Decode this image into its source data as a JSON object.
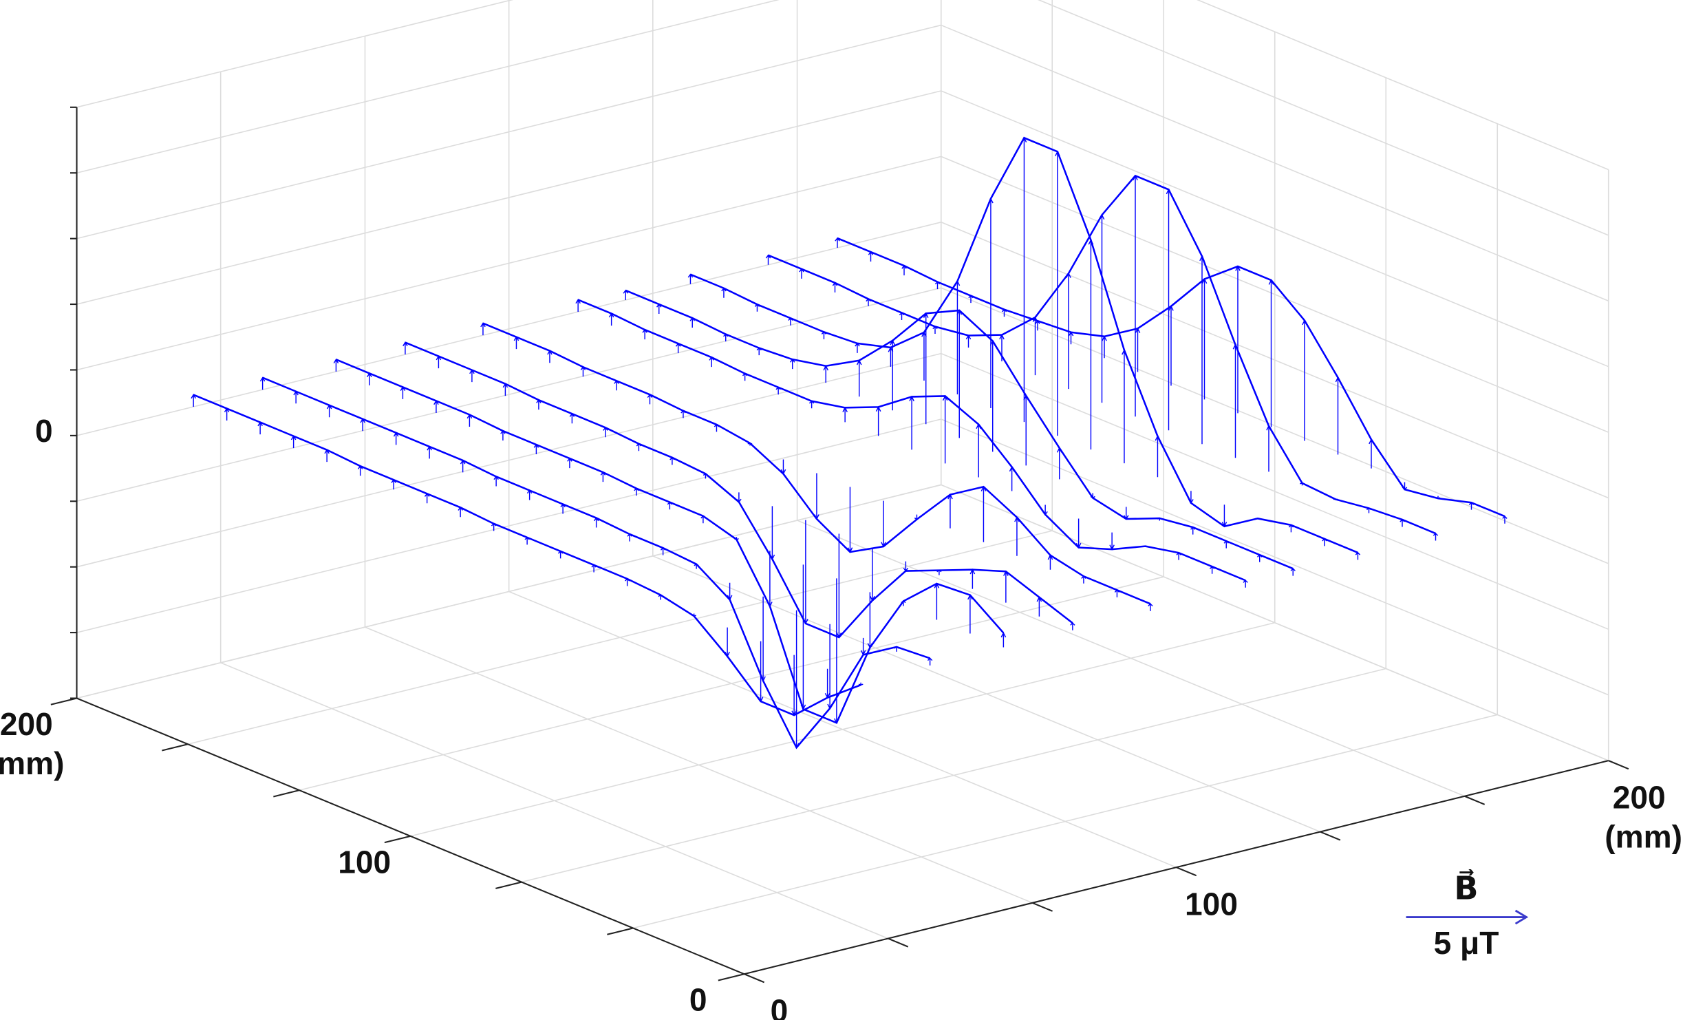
{
  "chart_data": {
    "type": "quiver3d",
    "color": "#0000ff",
    "grid": true,
    "xlim": [
      0,
      200
    ],
    "xticks": [
      0,
      {
        "value": 33.3,
        "label": null
      },
      {
        "value": 66.7,
        "label": null
      },
      100,
      {
        "value": 133.3,
        "label": null
      },
      {
        "value": 166.7,
        "label": null
      },
      {
        "value": 200,
        "label": "200 (mm)"
      }
    ],
    "ylim": [
      0,
      200
    ],
    "yticks": [
      0,
      {
        "value": 33.3,
        "label": null
      },
      {
        "value": 66.7,
        "label": null
      },
      100,
      {
        "value": 133.3,
        "label": null
      },
      {
        "value": 166.7,
        "label": null
      },
      {
        "value": 200,
        "label": "200 mm)"
      }
    ],
    "zlim": [
      -4,
      5
    ],
    "zticks": [
      {
        "value": -4,
        "label": null
      },
      {
        "value": -3,
        "label": null
      },
      {
        "value": -2,
        "label": null
      },
      {
        "value": -1,
        "label": null
      },
      0,
      {
        "value": 1,
        "label": null
      },
      {
        "value": 2,
        "label": null
      },
      {
        "value": 3,
        "label": null
      },
      {
        "value": 4,
        "label": null
      },
      {
        "value": 5,
        "label": null
      }
    ],
    "scale_arrow": {
      "symbol": "B⃗",
      "value": 5,
      "label": "5 μT"
    },
    "y": [
      0,
      10,
      20,
      30,
      40,
      50,
      60,
      70,
      80,
      90,
      100,
      110,
      120,
      130,
      140,
      150,
      160,
      170,
      180,
      190,
      200
    ],
    "series": [
      {
        "x": 27,
        "values": [
          -0.1,
          -1.2,
          -2.5,
          -2.5,
          -1.2,
          -0.1,
          0.2,
          0.3,
          0.3,
          0.3,
          0.3,
          0.3,
          0.4,
          0.4,
          0.4,
          0.4,
          0.5,
          0.5,
          0.5,
          0.5,
          0.5
        ]
      },
      {
        "x": 43,
        "values": [
          0.3,
          0.2,
          -0.7,
          -3.5,
          -5.7,
          -3.5,
          -0.7,
          0.2,
          0.3,
          0.3,
          0.4,
          0.4,
          0.4,
          0.4,
          0.5,
          0.5,
          0.5,
          0.5,
          0.5,
          0.5,
          0.5
        ]
      },
      {
        "x": 60,
        "values": [
          0.6,
          1.6,
          1.5,
          0.2,
          -2.3,
          -6.0,
          -6.0,
          -2.3,
          -0.1,
          0.3,
          0.3,
          0.3,
          0.4,
          0.4,
          0.4,
          0.4,
          0.5,
          0.5,
          0.5,
          0.5,
          0.5
        ]
      },
      {
        "x": 76,
        "values": [
          0.3,
          0.8,
          1.3,
          0.8,
          0.2,
          -0.4,
          -2.2,
          -4.3,
          -4.3,
          -2.2,
          -0.4,
          0.2,
          0.3,
          0.3,
          0.4,
          0.4,
          0.4,
          0.5,
          0.5,
          0.5,
          0.5
        ]
      },
      {
        "x": 94,
        "values": [
          0.3,
          0.3,
          0.3,
          0.6,
          1.6,
          2.3,
          1.4,
          -0.2,
          -1.9,
          -2.7,
          -1.9,
          -0.6,
          0.1,
          0.3,
          0.3,
          0.4,
          0.4,
          0.4,
          0.5,
          0.5,
          0.5
        ]
      },
      {
        "x": 116,
        "values": [
          0.3,
          0.3,
          0.3,
          0.0,
          -0.7,
          -1.2,
          -0.4,
          1.0,
          2.2,
          2.8,
          2.2,
          1.2,
          0.6,
          0.3,
          0.3,
          0.3,
          0.4,
          0.4,
          0.4,
          0.5,
          0.5
        ]
      },
      {
        "x": 127,
        "values": [
          0.3,
          0.3,
          0.3,
          0.3,
          0.1,
          -0.5,
          -0.2,
          1.3,
          2.9,
          4.6,
          5.3,
          4.6,
          2.9,
          1.5,
          0.7,
          0.4,
          0.3,
          0.3,
          0.4,
          0.4,
          0.4
        ]
      },
      {
        "x": 142,
        "values": [
          0.3,
          0.3,
          0.3,
          0.0,
          -0.9,
          -0.5,
          1.7,
          4.7,
          8.7,
          11.8,
          11.8,
          8.7,
          4.7,
          2.0,
          0.8,
          0.4,
          0.3,
          0.3,
          0.3,
          0.4,
          0.4
        ]
      },
      {
        "x": 160,
        "values": [
          0.3,
          0.3,
          0.2,
          0.0,
          0.1,
          1.9,
          4.7,
          7.8,
          10.0,
          10.0,
          7.8,
          4.8,
          2.4,
          1.1,
          0.5,
          0.3,
          0.3,
          0.3,
          0.4,
          0.4,
          0.4
        ]
      },
      {
        "x": 176,
        "values": [
          0.3,
          0.3,
          -0.1,
          -0.3,
          1.2,
          3.2,
          5.0,
          6.1,
          6.1,
          5.0,
          3.3,
          1.8,
          0.9,
          0.5,
          0.4,
          0.3,
          0.3,
          0.3,
          0.4,
          0.4,
          0.4
        ]
      }
    ]
  }
}
